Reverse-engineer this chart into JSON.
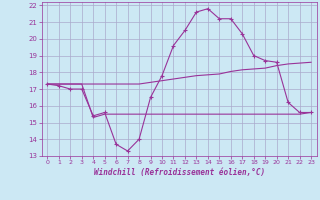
{
  "background_color": "#cce8f4",
  "grid_color": "#aaaacc",
  "line_color": "#993399",
  "xlabel": "Windchill (Refroidissement éolien,°C)",
  "xlim": [
    -0.5,
    23.5
  ],
  "ylim": [
    13,
    22.2
  ],
  "yticks": [
    13,
    14,
    15,
    16,
    17,
    18,
    19,
    20,
    21,
    22
  ],
  "xticks": [
    0,
    1,
    2,
    3,
    4,
    5,
    6,
    7,
    8,
    9,
    10,
    11,
    12,
    13,
    14,
    15,
    16,
    17,
    18,
    19,
    20,
    21,
    22,
    23
  ],
  "line1_x": [
    0,
    1,
    2,
    3,
    4,
    5,
    6,
    7,
    8,
    9,
    10,
    11,
    12,
    13,
    14,
    15,
    16,
    17,
    18,
    19,
    20,
    21,
    22,
    23
  ],
  "line1_y": [
    17.3,
    17.2,
    17.0,
    17.0,
    15.4,
    15.6,
    13.7,
    13.3,
    14.0,
    16.5,
    17.8,
    19.6,
    20.5,
    21.6,
    21.8,
    21.2,
    21.2,
    20.3,
    19.0,
    18.7,
    18.6,
    16.2,
    15.6,
    15.6
  ],
  "line2_x": [
    0,
    1,
    2,
    3,
    4,
    5,
    6,
    7,
    8,
    9,
    10,
    11,
    12,
    13,
    14,
    15,
    16,
    17,
    18,
    19,
    20,
    21,
    22,
    23
  ],
  "line2_y": [
    17.3,
    17.3,
    17.3,
    17.3,
    15.3,
    15.5,
    15.5,
    15.5,
    15.5,
    15.5,
    15.5,
    15.5,
    15.5,
    15.5,
    15.5,
    15.5,
    15.5,
    15.5,
    15.5,
    15.5,
    15.5,
    15.5,
    15.5,
    15.6
  ],
  "line3_x": [
    0,
    1,
    2,
    3,
    4,
    5,
    6,
    7,
    8,
    9,
    10,
    11,
    12,
    13,
    14,
    15,
    16,
    17,
    18,
    19,
    20,
    21,
    22,
    23
  ],
  "line3_y": [
    17.3,
    17.3,
    17.3,
    17.3,
    17.3,
    17.3,
    17.3,
    17.3,
    17.3,
    17.4,
    17.5,
    17.6,
    17.7,
    17.8,
    17.85,
    17.9,
    18.05,
    18.15,
    18.2,
    18.25,
    18.4,
    18.5,
    18.55,
    18.6
  ]
}
